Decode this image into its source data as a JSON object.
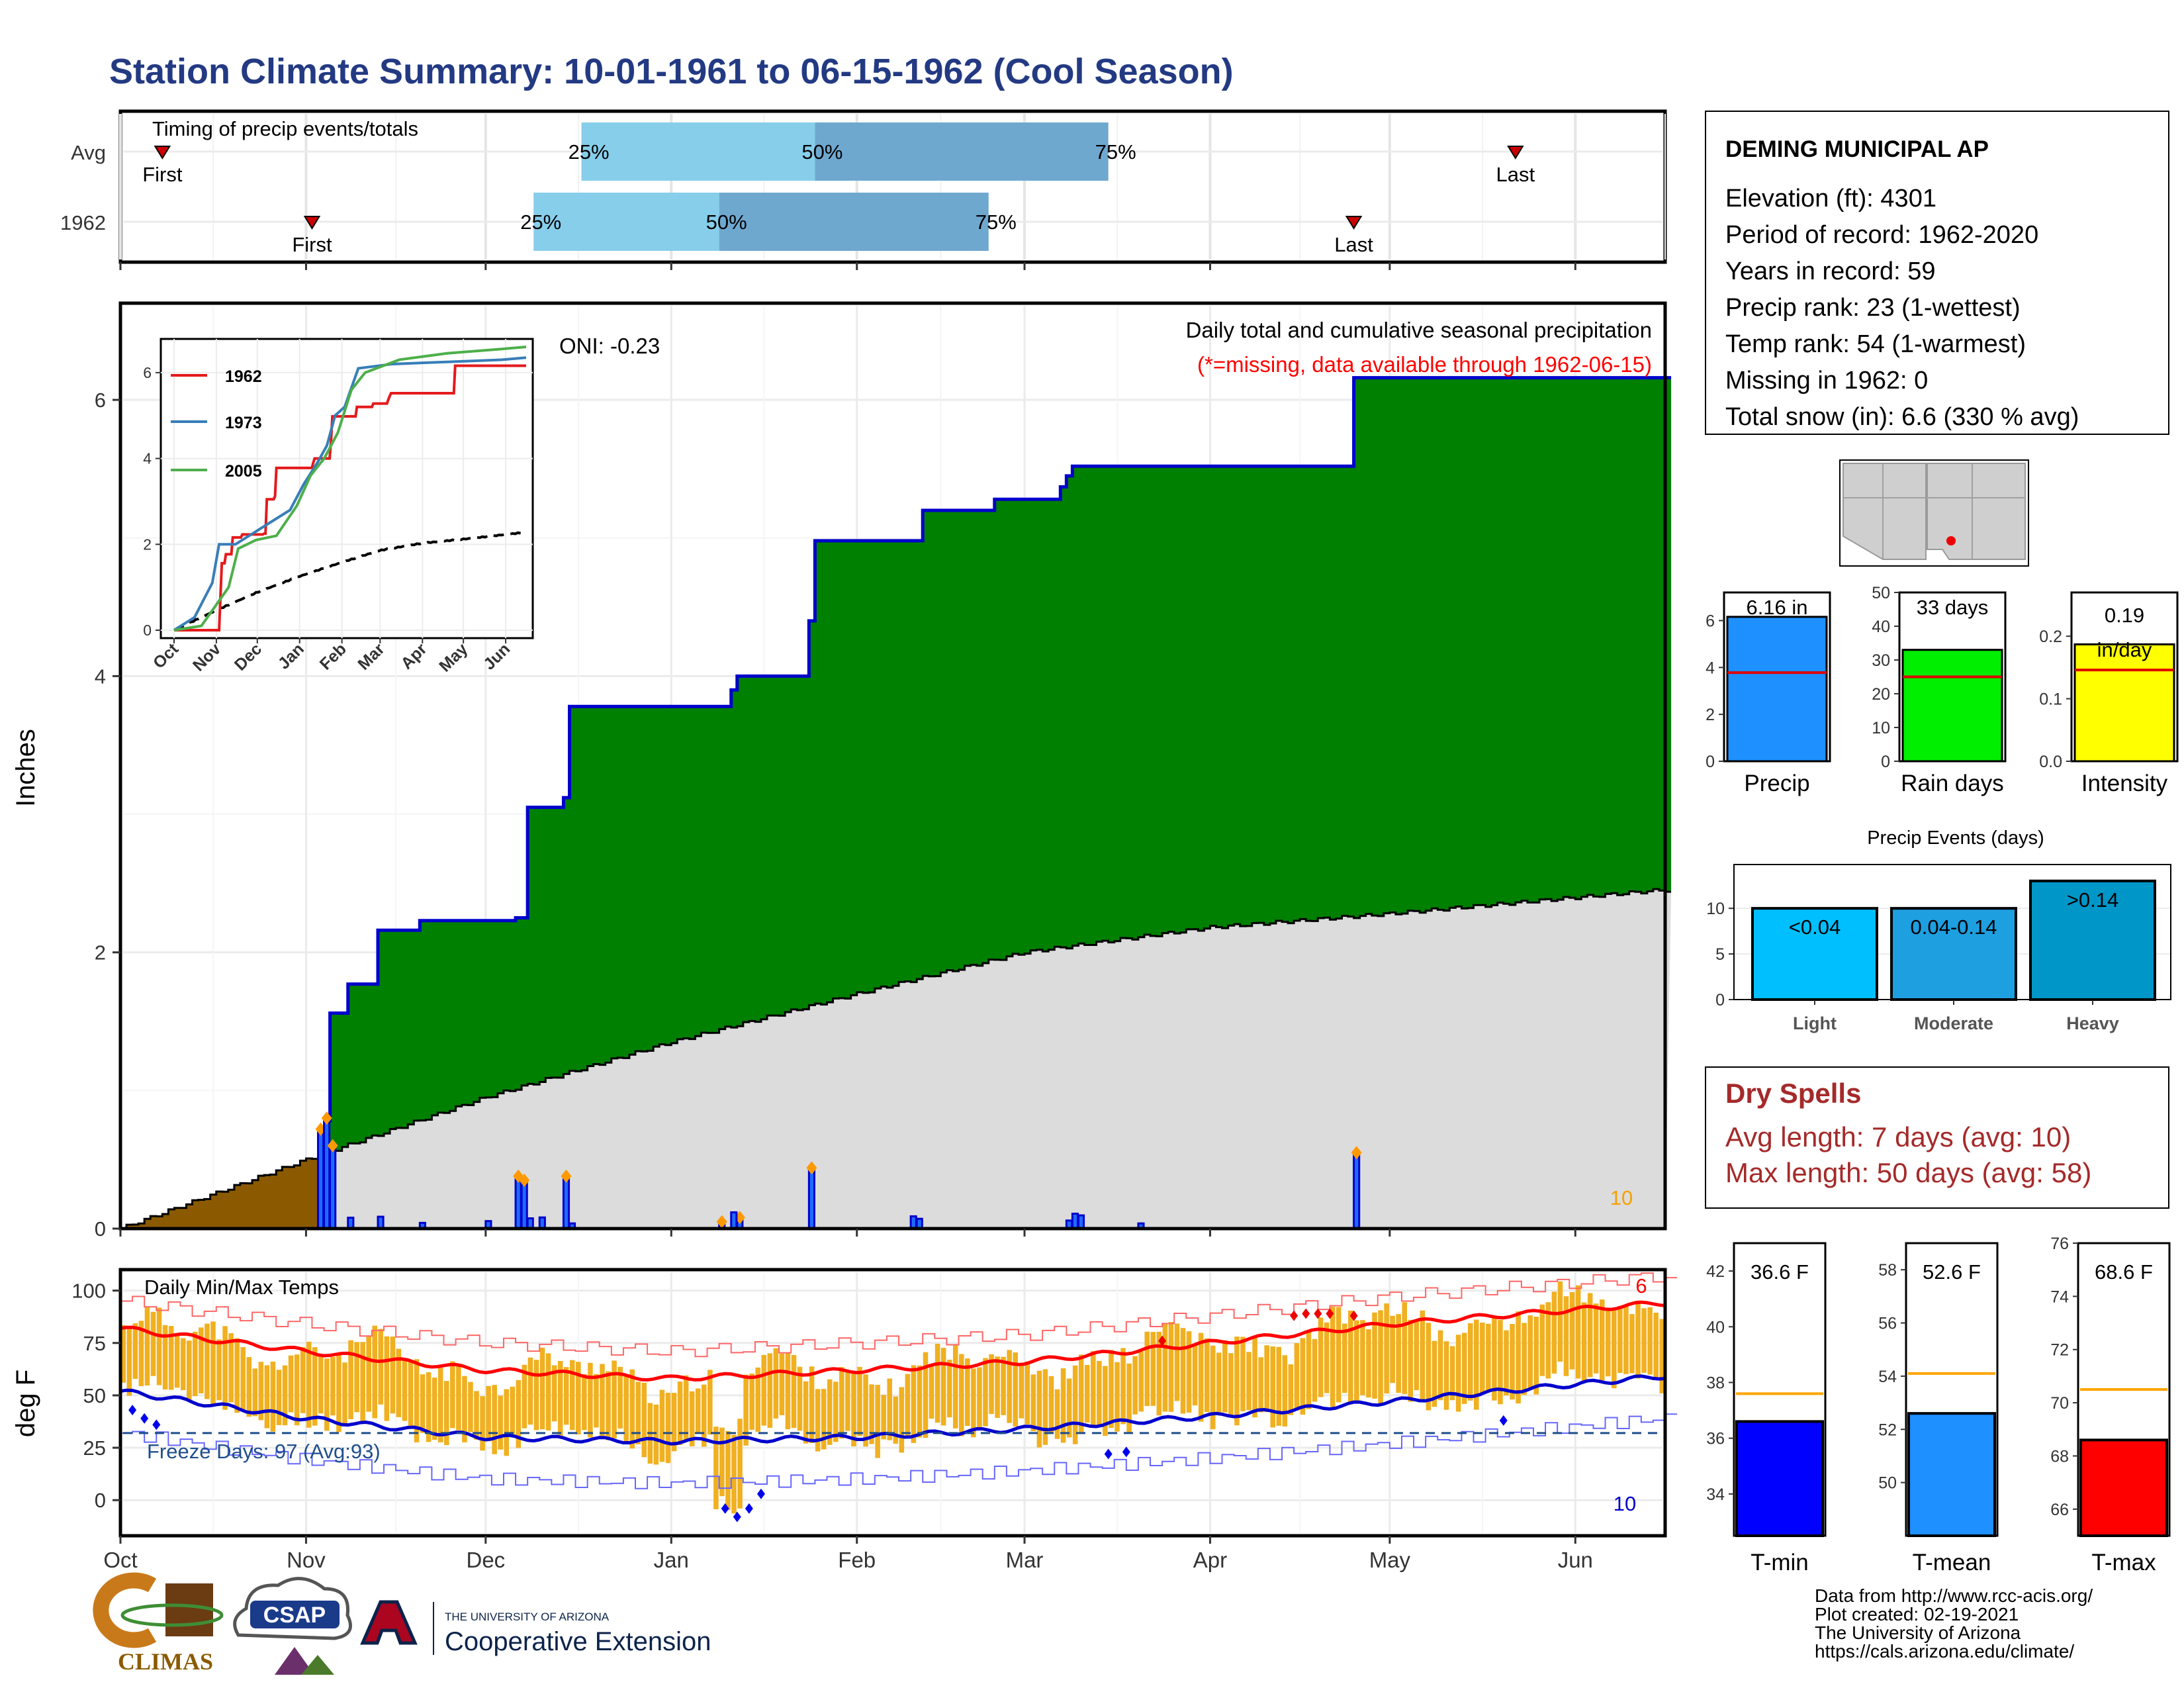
{
  "page": {
    "title": "Station Climate Summary: 10-01-1961 to 06-15-1962 (Cool Season)"
  },
  "months": [
    "Oct",
    "Nov",
    "Dec",
    "Jan",
    "Feb",
    "Mar",
    "Apr",
    "May",
    "Jun"
  ],
  "timing": {
    "caption": "Timing of precip events/totals",
    "rows": [
      {
        "label": "Avg",
        "first": "1961-10-08",
        "last": "1962-05-22",
        "p25": "1961-12-17",
        "p50": "1962-01-25",
        "p75": "1962-03-15",
        "first_label": "First",
        "last_label": "Last",
        "p25_label": "25%",
        "p50_label": "50%",
        "p75_label": "75%"
      },
      {
        "label": "1962",
        "first": "1961-11-02",
        "last": "1962-04-25",
        "p25": "1961-12-09",
        "p50": "1962-01-09",
        "p75": "1962-02-23",
        "first_label": "First",
        "last_label": "Last",
        "p25_label": "25%",
        "p50_label": "50%",
        "p75_label": "75%"
      }
    ],
    "colors": {
      "light": "#87ceeb",
      "dark": "#6fa8cf",
      "marker": "#cc0000"
    }
  },
  "main": {
    "ylabel": "Inches",
    "title_line1": "Daily total and cumulative seasonal precipitation",
    "title_line2": "(*=missing, data available through 1962-06-15)",
    "oni": "ONI: -0.23",
    "corner_count": "10",
    "ylim": [
      0,
      6.7
    ],
    "yticks": [
      "0",
      "2",
      "4",
      "6"
    ],
    "colors": {
      "cum_fill": "#008000",
      "cum_line": "#0000cc",
      "avg_fill": "#dcdcdc",
      "deficit_fill": "#8b5a00"
    }
  },
  "inset": {
    "yticks": [
      "0",
      "2",
      "4",
      "6"
    ],
    "months": [
      "Oct",
      "Nov",
      "Dec",
      "Jan",
      "Feb",
      "Mar",
      "Apr",
      "May",
      "Jun"
    ],
    "legend": [
      {
        "name": "1962",
        "color": "#e41a1c"
      },
      {
        "name": "1973",
        "color": "#377eb8"
      },
      {
        "name": "2005",
        "color": "#4daf4a"
      }
    ]
  },
  "temps": {
    "title": "Daily Min/Max Temps",
    "ylabel": "deg F",
    "freeze_label": "Freeze Days: 97 (Avg:93)",
    "record_high_count": "6",
    "record_low_count": "10",
    "yticks": [
      "0",
      "25",
      "50",
      "75",
      "100"
    ],
    "ylim": [
      -17,
      110
    ],
    "freeze_line": 32,
    "colors": {
      "bar": "#f0b020",
      "avg_max": "#ff0000",
      "avg_min": "#0000cc",
      "freeze": "#1f4e8c"
    }
  },
  "station": {
    "name": "DEMING MUNICIPAL AP",
    "lines": [
      "Elevation (ft): 4301",
      "Period of record: 1962-2020",
      "Years in record: 59",
      "Precip rank: 23 (1-wettest)",
      "Temp rank: 54 (1-warmest)",
      "Missing in 1962: 0",
      "Total snow (in): 6.6 (330 % avg)"
    ]
  },
  "summary_bars": [
    {
      "label": "Precip",
      "value_label": "6.16 in",
      "value": 6.16,
      "avg": 3.78,
      "ymax": 7.2,
      "yticks": [
        "0",
        "2",
        "4",
        "6"
      ],
      "color": "#1e90ff"
    },
    {
      "label": "Rain days",
      "value_label": "33 days",
      "value": 33,
      "avg": 25,
      "ymax": 50,
      "yticks": [
        "0",
        "10",
        "20",
        "30",
        "40",
        "50"
      ],
      "color": "#00ee00"
    },
    {
      "label": "Intensity",
      "value_label": "0.19 in/day",
      "value": 0.187,
      "avg": 0.146,
      "ymax": 0.27,
      "yticks": [
        "0.0",
        "0.1",
        "0.2"
      ],
      "color": "#ffff00"
    }
  ],
  "events": {
    "title": "Precip Events (days)",
    "yticks": [
      "0",
      "5",
      "10"
    ],
    "bars": [
      {
        "category": "Light",
        "label": "<0.04",
        "value": 10,
        "color": "#00bfff"
      },
      {
        "category": "Moderate",
        "label": "0.04-0.14",
        "value": 10,
        "color": "#1e9fe0"
      },
      {
        "category": "Heavy",
        "label": ">0.14",
        "value": 13,
        "color": "#0096c8"
      }
    ]
  },
  "dry_spells": {
    "title": "Dry Spells",
    "line1": "Avg length: 7 days (avg: 10)",
    "line2": "Max length: 50 days (avg: 58)"
  },
  "temp_bars": [
    {
      "label": "T-min",
      "value_label": "36.6 F",
      "value": 36.6,
      "avg": 37.6,
      "ylim": [
        32.5,
        43
      ],
      "yticks": [
        "34",
        "36",
        "38",
        "40",
        "42"
      ],
      "color": "#0000ff"
    },
    {
      "label": "T-mean",
      "value_label": "52.6 F",
      "value": 52.6,
      "avg": 54.1,
      "ylim": [
        48,
        59
      ],
      "yticks": [
        "50",
        "52",
        "54",
        "56",
        "58"
      ],
      "color": "#1e90ff"
    },
    {
      "label": "T-max",
      "value_label": "68.6 F",
      "value": 68.6,
      "avg": 70.5,
      "ylim": [
        65,
        76
      ],
      "yticks": [
        "66",
        "68",
        "70",
        "72",
        "74",
        "76"
      ],
      "color": "#ff0000"
    }
  ],
  "footer": {
    "credits": [
      "Data from http://www.rcc-acis.org/",
      "Plot created: 02-19-2021",
      "The University of Arizona",
      "https://cals.arizona.edu/climate/"
    ],
    "logo_climas": "CLIMAS",
    "logo_csap": "CSAP",
    "ua_small": "THE UNIVERSITY OF ARIZONA",
    "ua_big": "Cooperative Extension"
  },
  "chart_data": [
    {
      "type": "area",
      "title": "Daily total and cumulative seasonal precipitation",
      "ylabel": "Inches",
      "ylim": [
        0,
        6.7
      ],
      "x_range": [
        "1961-10-01",
        "1962-06-15"
      ],
      "series": [
        {
          "name": "1962",
          "x": [
            "1961-10-01",
            "1961-11-04",
            "1961-11-05",
            "1961-11-08",
            "1961-11-13",
            "1961-11-20",
            "1961-12-06",
            "1961-12-08",
            "1961-12-14",
            "1961-12-15",
            "1962-01-09",
            "1962-01-11",
            "1962-01-12",
            "1962-01-24",
            "1962-01-25",
            "1962-02-12",
            "1962-02-24",
            "1962-03-07",
            "1962-03-08",
            "1962-03-09",
            "1962-04-25",
            "1962-06-15"
          ],
          "values": [
            0,
            0.78,
            1.56,
            1.77,
            2.16,
            2.23,
            2.25,
            3.05,
            3.12,
            3.78,
            3.78,
            3.9,
            4.0,
            4.4,
            4.98,
            5.2,
            5.28,
            5.37,
            5.45,
            5.52,
            6.16,
            6.16
          ]
        },
        {
          "name": "Average",
          "x": [
            "1961-10-01",
            "1961-11-01",
            "1961-12-01",
            "1962-01-01",
            "1962-02-01",
            "1962-03-01",
            "1962-04-01",
            "1962-05-01",
            "1962-06-15"
          ],
          "values": [
            0,
            0.5,
            0.95,
            1.35,
            1.7,
            2.0,
            2.18,
            2.28,
            2.45
          ]
        }
      ],
      "daily_bars": {
        "x": [
          "1961-11-03",
          "1961-11-04",
          "1961-11-05",
          "1961-12-06",
          "1961-12-07",
          "1961-12-14",
          "1962-01-09",
          "1962-01-12",
          "1962-01-24",
          "1962-04-25"
        ],
        "values": [
          0.72,
          0.8,
          0.6,
          0.38,
          0.35,
          0.38,
          0.05,
          0.08,
          0.44,
          0.55
        ]
      }
    },
    {
      "type": "line",
      "title": "Daily Min/Max Temps",
      "ylabel": "deg F",
      "ylim": [
        -17,
        110
      ],
      "x_range": [
        "1961-10-01",
        "1962-06-15"
      ],
      "series": [
        {
          "name": "Avg max",
          "x": [
            "1961-10-01",
            "1961-11-01",
            "1961-12-01",
            "1962-01-01",
            "1962-02-01",
            "1962-03-01",
            "1962-04-01",
            "1962-05-01",
            "1962-06-15"
          ],
          "values": [
            82,
            71,
            62,
            58,
            62,
            66,
            75,
            84,
            94
          ]
        },
        {
          "name": "Avg min",
          "x": [
            "1961-10-01",
            "1961-11-01",
            "1961-12-01",
            "1962-01-01",
            "1962-02-01",
            "1962-03-01",
            "1962-04-01",
            "1962-05-01",
            "1962-06-15"
          ],
          "values": [
            52,
            39,
            30,
            28,
            30,
            34,
            40,
            47,
            59
          ]
        }
      ],
      "freeze_days": 97,
      "freeze_days_avg": 93
    },
    {
      "type": "bar",
      "title": "Precip Events (days)",
      "categories": [
        "Light",
        "Moderate",
        "Heavy"
      ],
      "values": [
        10,
        10,
        13
      ]
    }
  ]
}
